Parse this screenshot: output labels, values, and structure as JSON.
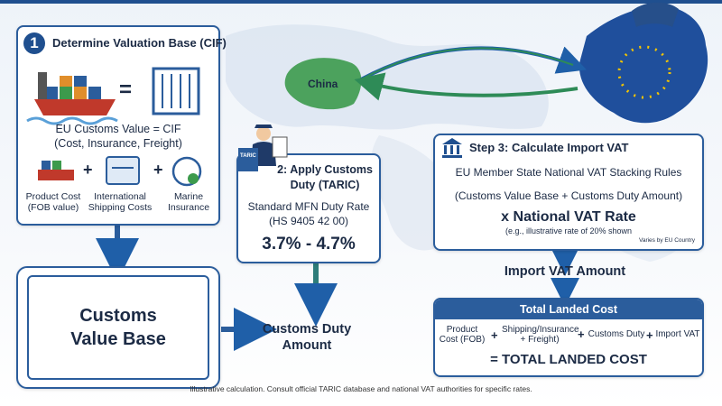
{
  "step1": {
    "number": "1",
    "title": "Determine Valuation Base (CIF)",
    "equals": "=",
    "plus": "+",
    "formula": "EU Customs Value = CIF",
    "formula_detail": "(Cost, Insurance, Freight)",
    "components": [
      "Product Cost (FOB value)",
      "International Shipping Costs",
      "Marine Insurance"
    ]
  },
  "customs_value_base": "Customs Value Base",
  "step2": {
    "badge": "TARIC",
    "title": "2: Apply Customs Duty (TARIC)",
    "rate_label": "Standard MFN Duty Rate",
    "hs_code": "(HS 9405 42 00)",
    "rate": "3.7% - 4.7%"
  },
  "customs_duty_amount": "Customs Duty Amount",
  "map": {
    "origin": "China"
  },
  "step3": {
    "title": "Step 3: Calculate Import VAT",
    "rule": "EU Member State National VAT Stacking Rules",
    "base": "(Customs Value Base + Customs Duty Amount)",
    "rate": "x National VAT Rate",
    "example": "(e.g., illustrative rate of 20% shown",
    "note": "Varies by EU Country"
  },
  "import_vat_amount": "Import VAT Amount",
  "total": {
    "title": "Total Landed Cost",
    "plus": "+",
    "terms": [
      "Product Cost (FOB)",
      "Shipping/Insurance + Freight)",
      "Customs Duty",
      "Import VAT"
    ],
    "result": "= TOTAL LANDED COST"
  },
  "footnote": "Illustrative calculation. Consult official TARIC database and national VAT authorities for specific rates."
}
